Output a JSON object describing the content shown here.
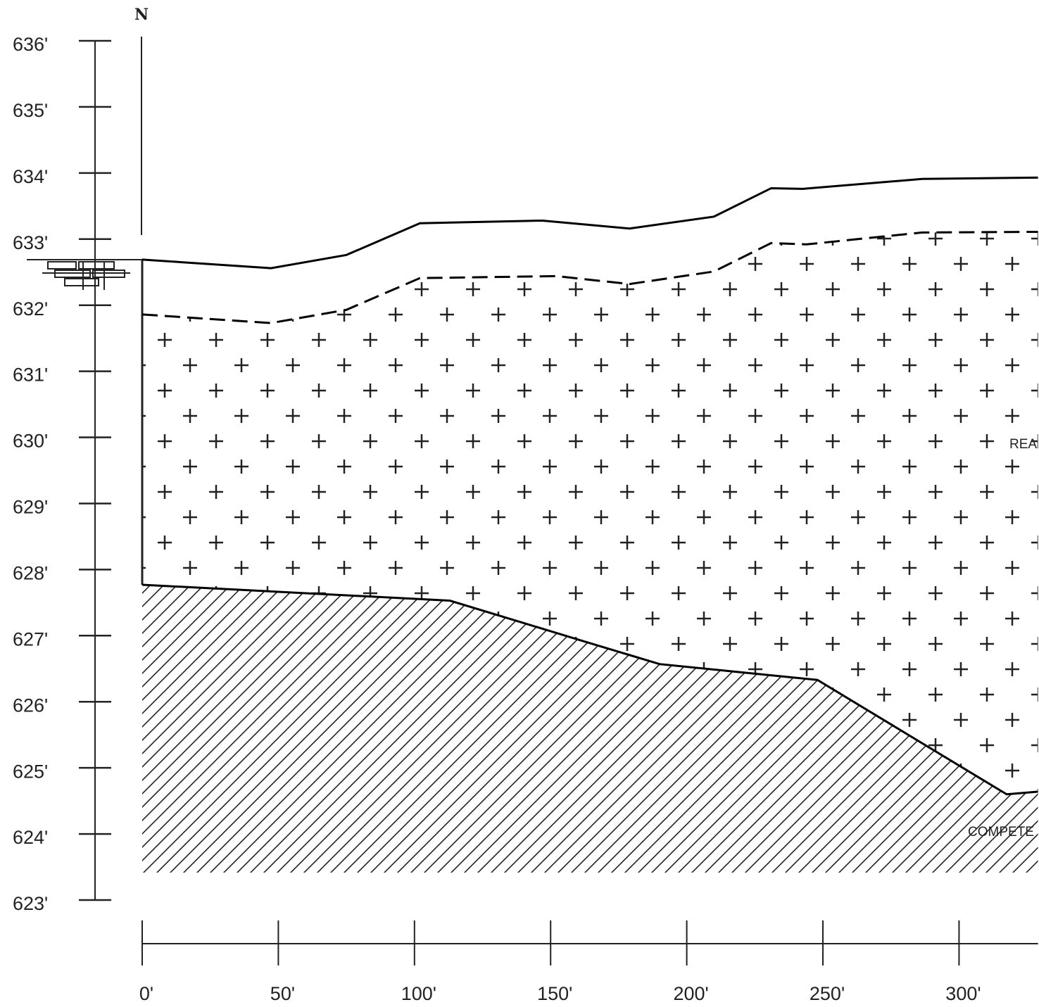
{
  "chart_data": {
    "type": "line",
    "north_label": "N",
    "annotations": [
      "REA",
      "COMPETE"
    ],
    "xlim": [
      0,
      329
    ],
    "xticks": [
      {
        "value": 0,
        "label": "0'"
      },
      {
        "value": 50,
        "label": "50'"
      },
      {
        "value": 100,
        "label": "100'"
      },
      {
        "value": 150,
        "label": "150'"
      },
      {
        "value": 200,
        "label": "200'"
      },
      {
        "value": 250,
        "label": "250'"
      },
      {
        "value": 300,
        "label": "300'"
      }
    ],
    "ylim": [
      623,
      636
    ],
    "yticks": [
      {
        "value": 636,
        "label": "636'"
      },
      {
        "value": 635,
        "label": "635'"
      },
      {
        "value": 634,
        "label": "634'"
      },
      {
        "value": 633,
        "label": "633'"
      },
      {
        "value": 632,
        "label": "632'"
      },
      {
        "value": 631,
        "label": "631'"
      },
      {
        "value": 630,
        "label": "630'"
      },
      {
        "value": 629,
        "label": "629'"
      },
      {
        "value": 628,
        "label": "628'"
      },
      {
        "value": 627,
        "label": "627'"
      },
      {
        "value": 626,
        "label": "626'"
      },
      {
        "value": 625,
        "label": "625'"
      },
      {
        "value": 624,
        "label": "624'"
      },
      {
        "value": 623,
        "label": "623'"
      }
    ],
    "series": [
      {
        "color": "#000000",
        "style": "solid",
        "fill": "none",
        "x": [
          0,
          47.3,
          75,
          102,
          147,
          179,
          210,
          231,
          242.6,
          286.5,
          329
        ],
        "values": [
          632.69,
          632.56,
          632.76,
          633.24,
          633.28,
          633.16,
          633.34,
          633.77,
          633.76,
          633.91,
          633.93
        ]
      },
      {
        "color": "#000000",
        "style": "dashed",
        "fill": "crosses",
        "x": [
          0,
          47.3,
          75,
          102,
          152,
          179,
          210,
          231,
          244,
          286.5,
          329
        ],
        "values": [
          631.86,
          631.73,
          631.93,
          632.41,
          632.44,
          632.32,
          632.51,
          632.94,
          632.92,
          633.1,
          633.11
        ]
      },
      {
        "color": "#000000",
        "style": "solid",
        "fill": "hatch",
        "x": [
          0,
          113,
          161,
          190,
          219,
          248,
          317.5,
          329
        ],
        "values": [
          627.77,
          627.53,
          626.93,
          626.57,
          626.45,
          626.33,
          624.6,
          624.64
        ]
      }
    ]
  }
}
